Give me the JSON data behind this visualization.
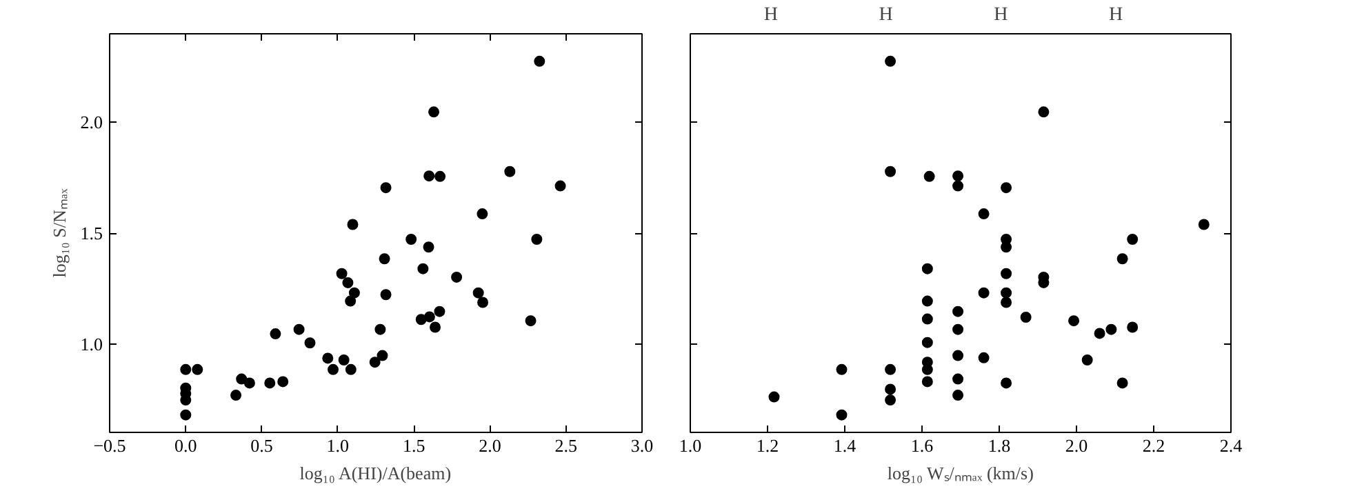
{
  "chart_data": [
    {
      "type": "scatter",
      "xlabel": "log₁₀ A(HI)/A(beam)",
      "ylabel": "log₁₀ S/Nₘₐₓ",
      "marker": "circle",
      "grid": false,
      "xlim": [
        -0.5,
        3.0
      ],
      "ylim": [
        0.6,
        2.4
      ],
      "xticks": [
        {
          "value": -0.5,
          "label": "−0.5"
        },
        {
          "value": 0,
          "label": "0.0"
        },
        0.5,
        {
          "value": 1,
          "label": "1.0"
        },
        1.5,
        {
          "value": 2,
          "label": "2.0"
        },
        2.5,
        {
          "value": 3,
          "label": "3.0"
        }
      ],
      "yticks": [
        {
          "value": 1,
          "label": "1.0"
        },
        1.5,
        {
          "value": 2,
          "label": "2.0"
        }
      ],
      "series": [
        {
          "color": "#000000",
          "x": [
            0.0,
            0.077,
            0.0,
            0.0,
            0.0,
            0.0,
            0.33,
            0.367,
            0.42,
            0.553,
            0.639,
            0.59,
            0.745,
            0.817,
            0.934,
            0.969,
            1.04,
            1.086,
            1.026,
            1.066,
            1.083,
            1.109,
            1.098,
            1.244,
            1.293,
            1.279,
            1.307,
            1.316,
            1.316,
            1.482,
            1.56,
            1.597,
            1.548,
            1.603,
            1.64,
            1.669,
            1.6,
            1.672,
            1.631,
            1.781,
            1.924,
            1.953,
            1.95,
            2.131,
            2.268,
            2.308,
            2.326,
            2.463
          ],
          "values": [
            0.884,
            0.884,
            0.8,
            0.775,
            0.746,
            0.679,
            0.768,
            0.841,
            0.823,
            0.823,
            0.829,
            1.045,
            1.065,
            1.004,
            0.935,
            0.884,
            0.927,
            0.884,
            1.317,
            1.276,
            1.193,
            1.23,
            1.539,
            0.917,
            0.947,
            1.065,
            1.384,
            1.222,
            1.705,
            1.472,
            1.339,
            1.437,
            1.11,
            1.122,
            1.075,
            1.146,
            1.758,
            1.756,
            2.047,
            1.301,
            1.23,
            1.187,
            1.587,
            1.778,
            1.104,
            1.472,
            2.276,
            1.713
          ]
        }
      ]
    },
    {
      "type": "scatter",
      "xlabel": "log₁₀ Wₛ/ₙₘₐₓ (km/s)",
      "marker": "circle",
      "grid": false,
      "tick_labels": "x",
      "xlim": [
        1.0,
        2.4
      ],
      "ylim": [
        0.6,
        2.4
      ],
      "xticks": [
        {
          "value": 1,
          "label": "1.0"
        },
        1.2,
        1.4,
        1.6,
        1.8,
        {
          "value": 2,
          "label": "2.0"
        },
        2.2,
        2.4
      ],
      "yticks": [
        1,
        1.5,
        2
      ],
      "annotations": [
        "H",
        "H",
        "H",
        "H"
      ],
      "series": [
        {
          "color": "#000000",
          "x": [
            1.217,
            1.392,
            1.392,
            1.518,
            1.518,
            1.518,
            1.518,
            1.518,
            1.619,
            1.614,
            1.614,
            1.614,
            1.614,
            1.614,
            1.614,
            1.614,
            1.693,
            1.693,
            1.693,
            1.693,
            1.693,
            1.693,
            1.693,
            1.76,
            1.76,
            1.76,
            1.818,
            1.818,
            1.818,
            1.818,
            1.818,
            1.818,
            1.818,
            1.869,
            1.915,
            1.915,
            1.915,
            1.993,
            2.028,
            2.06,
            2.09,
            2.119,
            2.119,
            2.145,
            2.145,
            2.33
          ],
          "values": [
            0.76,
            0.884,
            0.679,
            2.276,
            1.778,
            0.884,
            0.795,
            0.746,
            1.756,
            1.339,
            1.193,
            1.112,
            1.006,
            0.917,
            0.884,
            0.829,
            1.758,
            1.713,
            1.146,
            1.065,
            0.947,
            0.841,
            0.768,
            1.587,
            1.23,
            0.937,
            1.705,
            1.472,
            1.437,
            1.317,
            1.23,
            1.187,
            0.823,
            1.12,
            2.047,
            1.301,
            1.276,
            1.104,
            0.927,
            1.047,
            1.065,
            1.384,
            0.823,
            1.472,
            1.075,
            1.539
          ]
        }
      ]
    }
  ]
}
